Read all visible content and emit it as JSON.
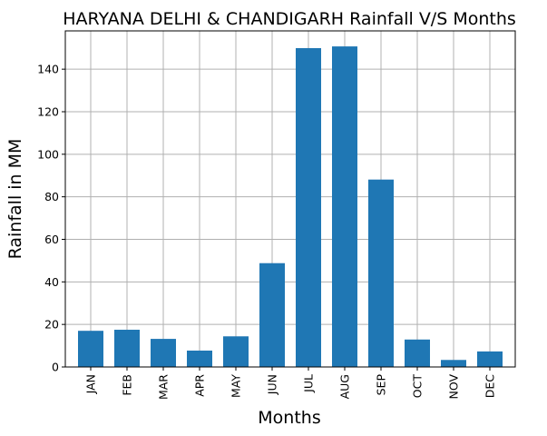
{
  "chart_data": {
    "type": "bar",
    "title": "HARYANA DELHI & CHANDIGARH Rainfall V/S Months",
    "xlabel": "Months",
    "ylabel": "Rainfall in MM",
    "categories": [
      "JAN",
      "FEB",
      "MAR",
      "APR",
      "MAY",
      "JUN",
      "JUL",
      "AUG",
      "SEP",
      "OCT",
      "NOV",
      "DEC"
    ],
    "values": [
      17.0,
      17.5,
      13.2,
      7.7,
      14.4,
      48.8,
      149.9,
      150.7,
      88.1,
      12.9,
      3.3,
      7.3
    ],
    "ylim": [
      0,
      158
    ],
    "yticks": [
      0,
      20,
      40,
      60,
      80,
      100,
      120,
      140
    ],
    "grid": true,
    "bar_color": "#1f77b4",
    "grid_color": "#b0b0b0"
  }
}
